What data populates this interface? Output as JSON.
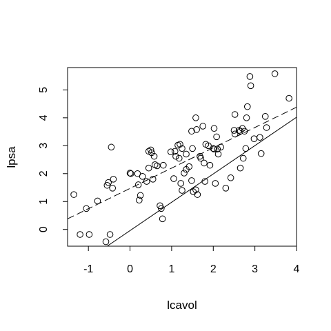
{
  "chart_data": {
    "type": "scatter",
    "title": "",
    "xlabel": "lcavol",
    "ylabel": "lpsa",
    "xlim": [
      -1.5,
      4.0
    ],
    "ylim": [
      -0.6,
      5.8
    ],
    "xticks": [
      "-1",
      "0",
      "1",
      "2",
      "3",
      "4"
    ],
    "yticks": [
      "0",
      "1",
      "2",
      "3",
      "4",
      "5"
    ],
    "grid": false,
    "legend": "none",
    "points": [
      [
        -1.35,
        1.25
      ],
      [
        -1.2,
        -0.18
      ],
      [
        -1.05,
        0.75
      ],
      [
        -0.98,
        -0.18
      ],
      [
        -0.78,
        1.02
      ],
      [
        -0.55,
        1.58
      ],
      [
        -0.52,
        1.68
      ],
      [
        -0.45,
        2.95
      ],
      [
        -0.42,
        1.48
      ],
      [
        -0.4,
        1.8
      ],
      [
        -0.58,
        -0.44
      ],
      [
        -0.48,
        -0.18
      ],
      [
        0.0,
        2.02
      ],
      [
        0.02,
        2.0
      ],
      [
        0.18,
        2.0
      ],
      [
        0.2,
        1.6
      ],
      [
        0.22,
        1.05
      ],
      [
        0.25,
        1.22
      ],
      [
        0.3,
        1.9
      ],
      [
        0.4,
        1.72
      ],
      [
        0.45,
        2.2
      ],
      [
        0.45,
        2.8
      ],
      [
        0.5,
        2.85
      ],
      [
        0.52,
        2.75
      ],
      [
        0.55,
        1.8
      ],
      [
        0.58,
        2.62
      ],
      [
        0.6,
        2.32
      ],
      [
        0.65,
        2.28
      ],
      [
        0.72,
        0.85
      ],
      [
        0.75,
        0.75
      ],
      [
        0.78,
        0.38
      ],
      [
        0.8,
        2.3
      ],
      [
        0.98,
        2.78
      ],
      [
        1.05,
        1.82
      ],
      [
        1.08,
        2.8
      ],
      [
        1.1,
        2.62
      ],
      [
        1.15,
        3.02
      ],
      [
        1.18,
        2.55
      ],
      [
        1.2,
        3.05
      ],
      [
        1.22,
        1.65
      ],
      [
        1.25,
        1.4
      ],
      [
        1.25,
        2.9
      ],
      [
        1.3,
        2.02
      ],
      [
        1.35,
        2.15
      ],
      [
        1.35,
        2.7
      ],
      [
        1.42,
        2.25
      ],
      [
        1.48,
        1.75
      ],
      [
        1.5,
        2.9
      ],
      [
        1.48,
        3.52
      ],
      [
        1.52,
        1.35
      ],
      [
        1.58,
        1.42
      ],
      [
        1.58,
        4.0
      ],
      [
        1.6,
        3.58
      ],
      [
        1.62,
        1.25
      ],
      [
        1.68,
        2.62
      ],
      [
        1.7,
        2.55
      ],
      [
        1.75,
        3.7
      ],
      [
        1.78,
        2.38
      ],
      [
        1.8,
        1.72
      ],
      [
        1.82,
        3.05
      ],
      [
        1.88,
        3.0
      ],
      [
        1.92,
        2.3
      ],
      [
        2.0,
        2.9
      ],
      [
        2.02,
        2.88
      ],
      [
        2.02,
        3.62
      ],
      [
        2.05,
        1.65
      ],
      [
        2.08,
        3.32
      ],
      [
        2.1,
        2.88
      ],
      [
        2.12,
        2.7
      ],
      [
        2.18,
        2.95
      ],
      [
        2.3,
        1.48
      ],
      [
        2.42,
        1.85
      ],
      [
        2.5,
        3.55
      ],
      [
        2.52,
        3.42
      ],
      [
        2.52,
        4.12
      ],
      [
        2.62,
        3.55
      ],
      [
        2.65,
        3.52
      ],
      [
        2.65,
        2.2
      ],
      [
        2.7,
        3.62
      ],
      [
        2.72,
        2.55
      ],
      [
        2.75,
        3.52
      ],
      [
        2.78,
        2.9
      ],
      [
        2.8,
        4.0
      ],
      [
        2.82,
        4.4
      ],
      [
        2.88,
        5.48
      ],
      [
        2.9,
        5.15
      ],
      [
        2.98,
        3.25
      ],
      [
        3.12,
        3.3
      ],
      [
        3.15,
        2.72
      ],
      [
        3.25,
        4.05
      ],
      [
        3.28,
        3.65
      ],
      [
        3.48,
        5.58
      ],
      [
        3.82,
        4.7
      ]
    ],
    "lines": [
      {
        "style": "dashed",
        "x": [
          -1.5,
          4.0
        ],
        "y": [
          0.38,
          4.38
        ]
      },
      {
        "style": "solid",
        "x": [
          -0.55,
          4.0
        ],
        "y": [
          -0.6,
          4.02
        ]
      }
    ]
  }
}
